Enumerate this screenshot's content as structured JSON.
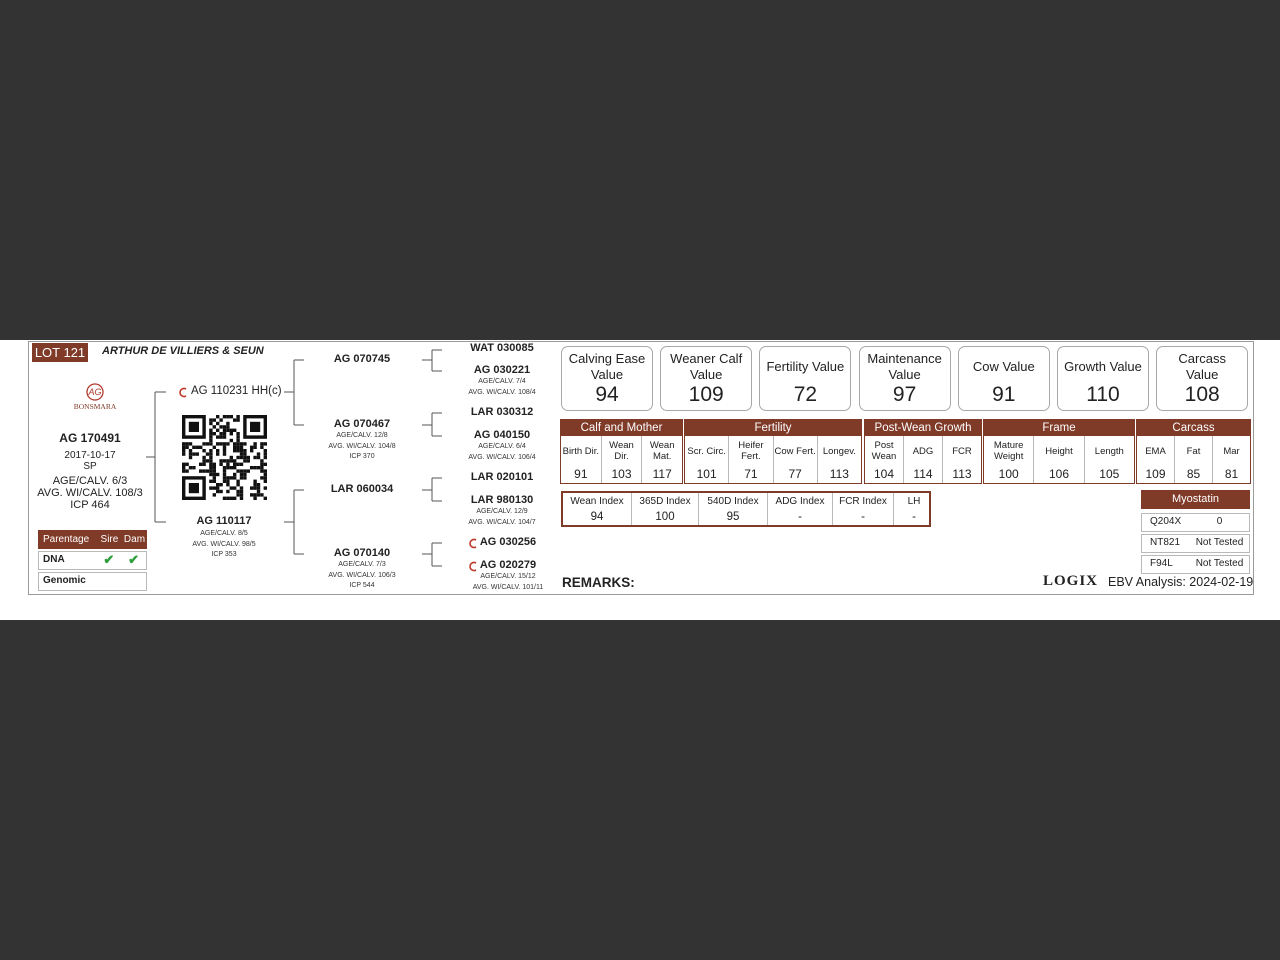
{
  "header": {
    "lot": "LOT 121",
    "breeder": "ARTHUR DE VILLIERS & SEUN",
    "logo": "BONSMARA"
  },
  "animal": {
    "id": "AG 170491",
    "lines": [
      "2017-10-17",
      "SP",
      "AGE/CALV. 6/3",
      "AVG. WI/CALV. 108/3",
      "ICP 464"
    ]
  },
  "parentage": {
    "headers": [
      "Parentage",
      "Sire",
      "Dam"
    ],
    "rows": [
      {
        "label": "DNA",
        "sire": "✔",
        "dam": "✔"
      },
      {
        "label": "Genomic"
      }
    ]
  },
  "sire": {
    "id": "AG 110231 HH(c)"
  },
  "dam": {
    "id": "AG 110117",
    "lines": [
      "AGE/CALV. 8/5",
      "AVG. WI/CALV. 98/5",
      "ICP 353"
    ]
  },
  "grandparents": [
    {
      "id": "AG 070745"
    },
    {
      "id": "AG 070467",
      "lines": [
        "AGE/CALV. 12/8",
        "AVG. WI/CALV. 104/8",
        "ICP 370"
      ]
    },
    {
      "id": "LAR 060034"
    },
    {
      "id": "AG 070140",
      "lines": [
        "AGE/CALV. 7/3",
        "AVG. WI/CALV. 106/3",
        "ICP 544"
      ]
    }
  ],
  "great_grandparents": [
    {
      "id": "WAT 030085"
    },
    {
      "id": "AG 030221",
      "lines": [
        "AGE/CALV. 7/4",
        "AVG. WI/CALV. 108/4"
      ]
    },
    {
      "id": "LAR 030312"
    },
    {
      "id": "AG 040150",
      "lines": [
        "AGE/CALV. 6/4",
        "AVG. WI/CALV. 106/4"
      ]
    },
    {
      "id": "LAR 020101"
    },
    {
      "id": "LAR 980130",
      "lines": [
        "AGE/CALV. 12/9",
        "AVG. WI/CALV. 104/7"
      ]
    },
    {
      "id": "AG 030256"
    },
    {
      "id": "AG 020279",
      "lines": [
        "AGE/CALV. 15/12",
        "AVG. WI/CALV. 101/11"
      ]
    }
  ],
  "value_boxes": [
    {
      "label": "Calving Ease Value",
      "value": 94
    },
    {
      "label": "Weaner Calf Value",
      "value": 109
    },
    {
      "label": "Fertility Value",
      "value": 72
    },
    {
      "label": "Maintenance Value",
      "value": 97
    },
    {
      "label": "Cow Value",
      "value": 91
    },
    {
      "label": "Growth Value",
      "value": 110
    },
    {
      "label": "Carcass Value",
      "value": 108
    }
  ],
  "ebv_groups": [
    {
      "name": "Calf and Mother",
      "cells": [
        {
          "label": "Birth Dir.",
          "value": 91
        },
        {
          "label": "Wean Dir.",
          "value": 103
        },
        {
          "label": "Wean Mat.",
          "value": 117
        }
      ]
    },
    {
      "name": "Fertility",
      "cells": [
        {
          "label": "Scr. Circ.",
          "value": 101
        },
        {
          "label": "Heifer Fert.",
          "value": 71
        },
        {
          "label": "Cow Fert.",
          "value": 77
        },
        {
          "label": "Longev.",
          "value": 113
        }
      ]
    },
    {
      "name": "Post-Wean Growth",
      "cells": [
        {
          "label": "Post Wean",
          "value": 104
        },
        {
          "label": "ADG",
          "value": 114
        },
        {
          "label": "FCR",
          "value": 113
        }
      ]
    },
    {
      "name": "Frame",
      "cells": [
        {
          "label": "Mature Weight",
          "value": 100
        },
        {
          "label": "Height",
          "value": 106
        },
        {
          "label": "Length",
          "value": 105
        }
      ]
    },
    {
      "name": "Carcass",
      "cells": [
        {
          "label": "EMA",
          "value": 109
        },
        {
          "label": "Fat",
          "value": 85
        },
        {
          "label": "Mar",
          "value": 81
        }
      ]
    }
  ],
  "indexes": [
    {
      "label": "Wean Index",
      "value": 94
    },
    {
      "label": "365D Index",
      "value": 100
    },
    {
      "label": "540D Index",
      "value": 95
    },
    {
      "label": "ADG Index",
      "value": "-"
    },
    {
      "label": "FCR Index",
      "value": "-"
    },
    {
      "label": "LH",
      "value": "-"
    }
  ],
  "myostatin": {
    "title": "Myostatin",
    "rows": [
      {
        "marker": "Q204X",
        "result": "0"
      },
      {
        "marker": "NT821",
        "result": "Not Tested"
      },
      {
        "marker": "F94L",
        "result": "Not Tested"
      }
    ]
  },
  "footer": {
    "remarks": "REMARKS:",
    "logo": "LOGIX",
    "analysis": "EBV Analysis: 2024-02-19"
  }
}
